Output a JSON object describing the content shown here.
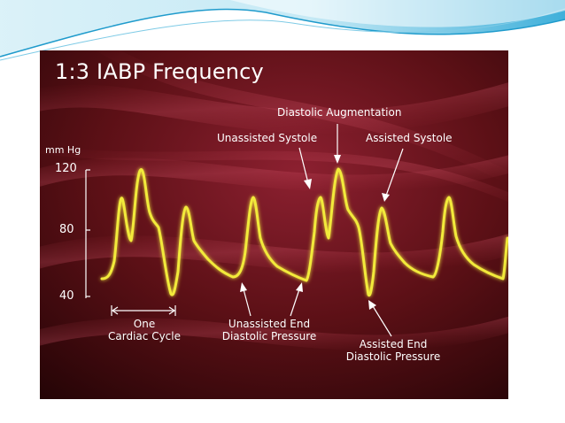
{
  "figure": {
    "title": "1:3 IABP Frequency",
    "y_axis": {
      "unit": "mm Hg",
      "ticks": [
        "120",
        "80",
        "40"
      ]
    },
    "annotations": {
      "diastolic_augmentation": "Diastolic Augmentation",
      "unassisted_systole": "Unassisted Systole",
      "assisted_systole": "Assisted Systole",
      "one_cardiac_cycle_line1": "One",
      "one_cardiac_cycle_line2": "Cardiac Cycle",
      "unassisted_edp_line1": "Unassisted End",
      "unassisted_edp_line2": "Diastolic Pressure",
      "assisted_edp_line1": "Assisted End",
      "assisted_edp_line2": "Diastolic Pressure"
    },
    "colors": {
      "background_dark": "#2a0608",
      "background_mid": "#7a1622",
      "trace": "#f2ea3a",
      "text": "#ffffff",
      "header_accent": "#29a9d8"
    }
  }
}
